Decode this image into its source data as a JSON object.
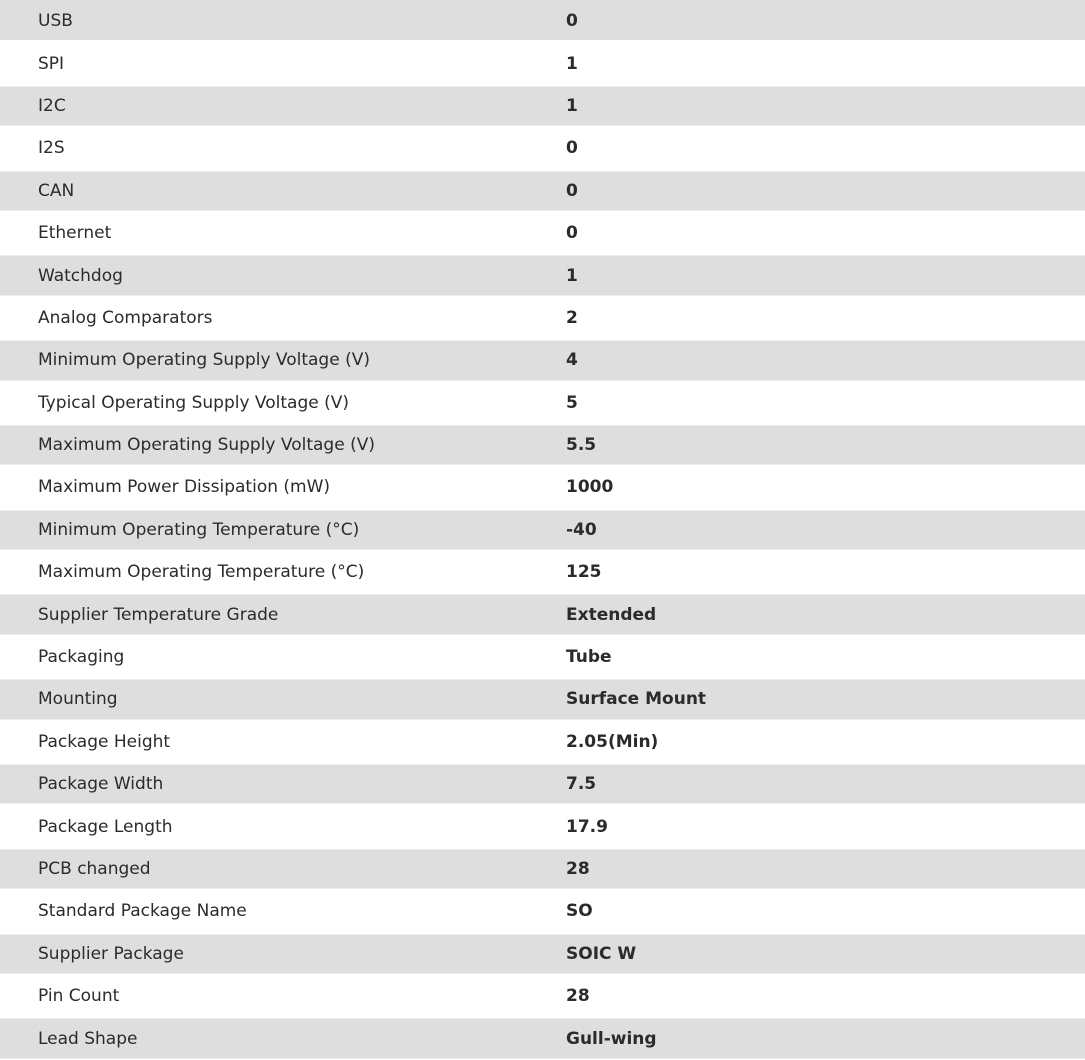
{
  "colors": {
    "shade": "#dedede",
    "text": "#2b2b2b"
  },
  "rows": [
    {
      "name": "USB",
      "value": "0"
    },
    {
      "name": "SPI",
      "value": "1"
    },
    {
      "name": "I2C",
      "value": "1"
    },
    {
      "name": "I2S",
      "value": "0"
    },
    {
      "name": "CAN",
      "value": "0"
    },
    {
      "name": "Ethernet",
      "value": "0"
    },
    {
      "name": "Watchdog",
      "value": "1"
    },
    {
      "name": "Analog Comparators",
      "value": "2"
    },
    {
      "name": "Minimum Operating Supply Voltage (V)",
      "value": "4"
    },
    {
      "name": "Typical Operating Supply Voltage (V)",
      "value": "5"
    },
    {
      "name": "Maximum Operating Supply Voltage (V)",
      "value": "5.5"
    },
    {
      "name": "Maximum Power Dissipation (mW)",
      "value": "1000"
    },
    {
      "name": "Minimum Operating Temperature (°C)",
      "value": "-40"
    },
    {
      "name": "Maximum Operating Temperature (°C)",
      "value": "125"
    },
    {
      "name": "Supplier Temperature Grade",
      "value": "Extended"
    },
    {
      "name": "Packaging",
      "value": "Tube"
    },
    {
      "name": "Mounting",
      "value": "Surface Mount"
    },
    {
      "name": "Package Height",
      "value": "2.05(Min)"
    },
    {
      "name": "Package Width",
      "value": "7.5"
    },
    {
      "name": "Package Length",
      "value": "17.9"
    },
    {
      "name": "PCB changed",
      "value": "28"
    },
    {
      "name": "Standard Package Name",
      "value": "SO"
    },
    {
      "name": "Supplier Package",
      "value": "SOIC W"
    },
    {
      "name": "Pin Count",
      "value": "28"
    },
    {
      "name": "Lead Shape",
      "value": "Gull-wing"
    }
  ]
}
